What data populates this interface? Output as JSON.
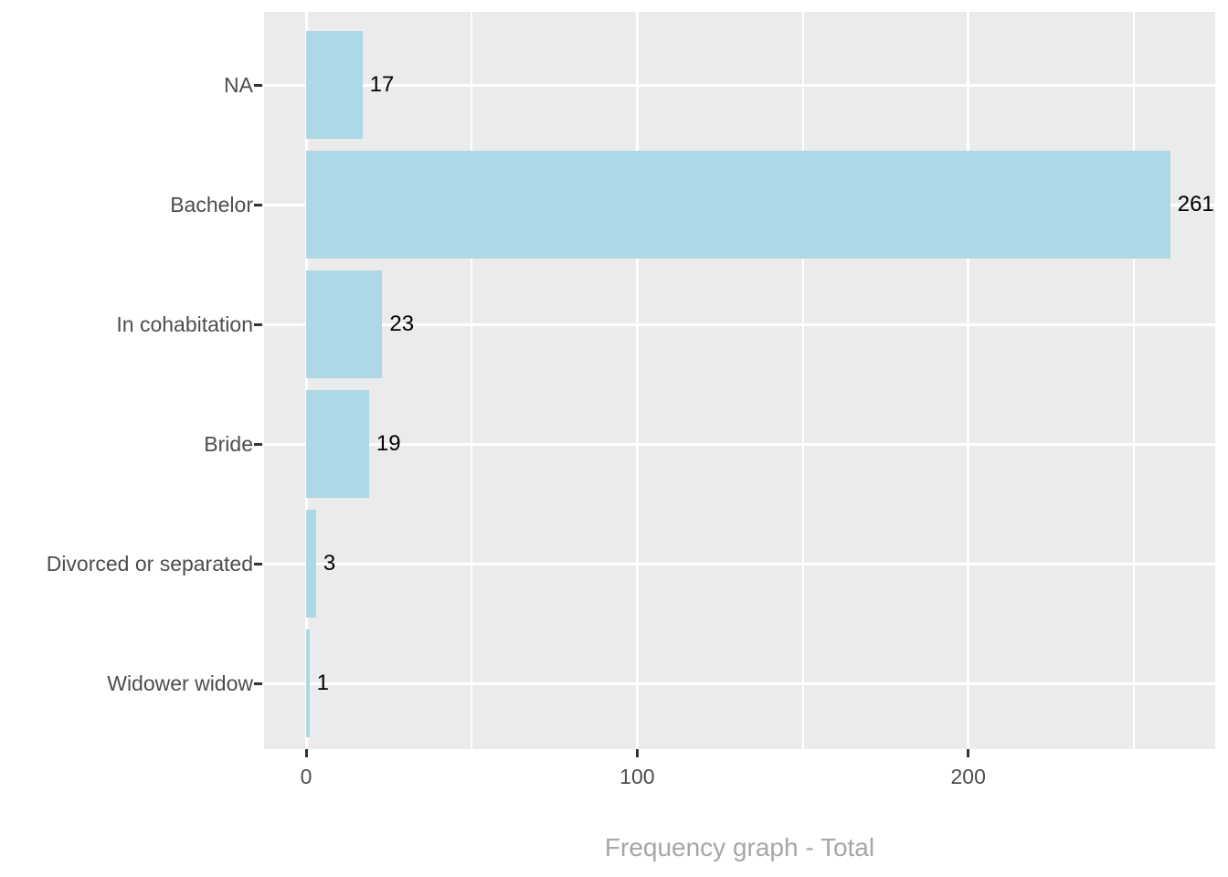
{
  "chart_data": {
    "type": "bar",
    "orientation": "horizontal",
    "title": "",
    "xlabel": "Frequency graph - Total",
    "ylabel": "",
    "categories": [
      "NA",
      "Bachelor",
      "In cohabitation",
      "Bride",
      "Divorced or separated",
      "Widower widow"
    ],
    "values": [
      17,
      261,
      23,
      19,
      3,
      1
    ],
    "bar_labels": [
      "17",
      "261",
      "23",
      "19",
      "3",
      "1"
    ],
    "x_ticks": [
      0,
      100,
      200
    ],
    "x_minor_gridlines": [
      50,
      150,
      250
    ],
    "xlim": [
      -12.7,
      274.6
    ],
    "grid": true,
    "legend": false,
    "colors": {
      "background": "#FFFFFF",
      "panel_bg": "#EBEBEB",
      "gridline": "#FFFFFF",
      "bar": "#ADD8E6",
      "axis_text": "#4D4D4D",
      "tick_mark": "#333333",
      "value_label": "#000000",
      "axis_title": "#A6A6A6"
    }
  }
}
